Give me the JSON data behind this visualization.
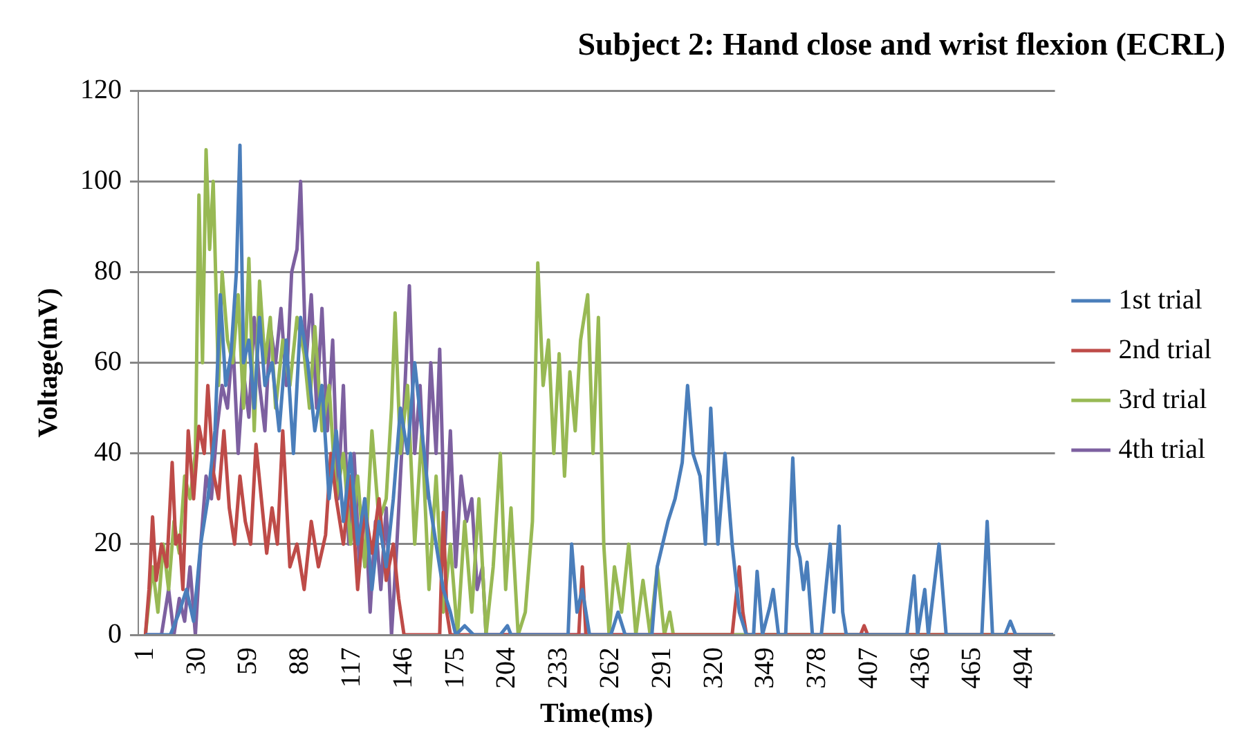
{
  "chart_data": {
    "type": "line",
    "title": "Subject 2: Hand close and wrist flexion (ECRL)",
    "xlabel": "Time(ms)",
    "ylabel": "Voltage(mV)",
    "xlim": [
      -3,
      511
    ],
    "xticks": [
      1,
      30,
      59,
      88,
      117,
      146,
      175,
      204,
      233,
      262,
      291,
      320,
      349,
      378,
      407,
      436,
      465,
      494
    ],
    "ylim": [
      0,
      120
    ],
    "yticks": [
      0,
      20,
      40,
      60,
      80,
      100,
      120
    ],
    "grid": "y",
    "legend": "right",
    "marker": "none",
    "line_style": "solid",
    "series": [
      {
        "name": "1st trial",
        "color": "#4a7ebb",
        "x": [
          1,
          15,
          20,
          24,
          28,
          32,
          36,
          40,
          43,
          46,
          49,
          52,
          54,
          56,
          59,
          62,
          65,
          68,
          72,
          76,
          80,
          84,
          88,
          92,
          96,
          100,
          104,
          108,
          112,
          116,
          120,
          124,
          128,
          132,
          136,
          140,
          144,
          148,
          152,
          156,
          160,
          164,
          168,
          172,
          175,
          180,
          185,
          200,
          204,
          206,
          238,
          240,
          243,
          246,
          250,
          262,
          266,
          270,
          285,
          288,
          291,
          294,
          298,
          302,
          305,
          308,
          312,
          315,
          318,
          322,
          326,
          330,
          334,
          338,
          342,
          344,
          347,
          351,
          353,
          356,
          360,
          364,
          366,
          368,
          370,
          372,
          375,
          380,
          385,
          387,
          390,
          392,
          394,
          428,
          432,
          434,
          438,
          440,
          446,
          448,
          450,
          470,
          473,
          476,
          483,
          486,
          489,
          510
        ],
        "values": [
          0,
          0,
          5,
          10,
          3,
          20,
          30,
          45,
          75,
          55,
          62,
          80,
          108,
          60,
          65,
          50,
          70,
          55,
          60,
          45,
          65,
          40,
          70,
          60,
          45,
          55,
          30,
          45,
          25,
          40,
          20,
          30,
          10,
          25,
          15,
          30,
          50,
          40,
          60,
          45,
          30,
          20,
          10,
          5,
          0,
          2,
          0,
          0,
          2,
          0,
          0,
          20,
          5,
          10,
          0,
          0,
          5,
          0,
          0,
          15,
          20,
          25,
          30,
          38,
          55,
          40,
          35,
          20,
          50,
          20,
          40,
          20,
          5,
          0,
          0,
          14,
          0,
          6,
          10,
          0,
          0,
          39,
          20,
          17,
          10,
          16,
          0,
          0,
          20,
          5,
          24,
          5,
          0,
          0,
          13,
          0,
          10,
          0,
          20,
          10,
          0,
          0,
          25,
          0,
          0,
          3,
          0,
          0
        ]
      },
      {
        "name": "2nd trial",
        "color": "#be4b48",
        "x": [
          1,
          3,
          5,
          7,
          10,
          13,
          16,
          18,
          20,
          22,
          25,
          28,
          31,
          34,
          36,
          39,
          42,
          45,
          48,
          51,
          54,
          57,
          60,
          63,
          66,
          69,
          72,
          75,
          78,
          82,
          86,
          90,
          94,
          98,
          102,
          105,
          108,
          112,
          116,
          120,
          124,
          128,
          132,
          136,
          140,
          143,
          146,
          160,
          166,
          168,
          170,
          172,
          244,
          246,
          248,
          250,
          330,
          334,
          336,
          338,
          402,
          404,
          406,
          510
        ],
        "values": [
          0,
          10,
          26,
          12,
          20,
          15,
          38,
          20,
          22,
          10,
          45,
          30,
          46,
          40,
          55,
          36,
          30,
          45,
          28,
          20,
          35,
          25,
          20,
          42,
          30,
          18,
          28,
          20,
          45,
          15,
          20,
          10,
          25,
          15,
          22,
          40,
          30,
          20,
          35,
          10,
          28,
          18,
          30,
          12,
          20,
          8,
          0,
          0,
          0,
          27,
          5,
          0,
          0,
          15,
          0,
          0,
          0,
          15,
          5,
          0,
          0,
          2,
          0,
          0
        ]
      },
      {
        "name": "3rd trial",
        "color": "#98b954",
        "x": [
          1,
          5,
          8,
          11,
          14,
          17,
          20,
          23,
          26,
          29,
          31,
          33,
          35,
          37,
          39,
          42,
          44,
          47,
          50,
          53,
          56,
          59,
          62,
          65,
          68,
          71,
          74,
          78,
          82,
          86,
          90,
          93,
          96,
          100,
          104,
          108,
          112,
          116,
          120,
          124,
          128,
          132,
          136,
          139,
          141,
          144,
          148,
          152,
          156,
          160,
          164,
          168,
          172,
          176,
          180,
          184,
          188,
          192,
          196,
          200,
          203,
          206,
          210,
          214,
          218,
          221,
          224,
          227,
          230,
          233,
          236,
          239,
          242,
          245,
          249,
          252,
          255,
          258,
          261,
          264,
          268,
          272,
          276,
          280,
          284,
          288,
          292,
          295,
          297,
          300,
          510
        ],
        "values": [
          0,
          15,
          5,
          20,
          10,
          25,
          18,
          35,
          30,
          40,
          97,
          60,
          107,
          85,
          100,
          55,
          80,
          65,
          60,
          75,
          50,
          83,
          45,
          78,
          60,
          70,
          50,
          65,
          55,
          70,
          62,
          50,
          68,
          45,
          55,
          30,
          40,
          20,
          35,
          15,
          45,
          25,
          30,
          50,
          71,
          40,
          55,
          20,
          45,
          10,
          35,
          5,
          20,
          0,
          25,
          5,
          30,
          0,
          15,
          40,
          10,
          28,
          0,
          5,
          25,
          82,
          55,
          65,
          40,
          62,
          35,
          58,
          45,
          65,
          75,
          40,
          70,
          20,
          0,
          15,
          5,
          20,
          0,
          12,
          0,
          15,
          0,
          5,
          0,
          0,
          0
        ]
      },
      {
        "name": "4th trial",
        "color": "#7d60a0",
        "x": [
          1,
          10,
          14,
          17,
          20,
          23,
          26,
          29,
          32,
          35,
          38,
          41,
          44,
          47,
          50,
          53,
          56,
          59,
          62,
          65,
          68,
          71,
          74,
          77,
          80,
          83,
          86,
          88,
          91,
          94,
          97,
          100,
          103,
          106,
          109,
          112,
          115,
          118,
          121,
          124,
          127,
          130,
          133,
          136,
          139,
          142,
          146,
          149,
          152,
          155,
          158,
          161,
          164,
          166,
          169,
          172,
          175,
          178,
          181,
          184,
          187,
          190,
          192,
          510
        ],
        "values": [
          0,
          0,
          10,
          0,
          8,
          3,
          15,
          0,
          20,
          35,
          30,
          45,
          55,
          50,
          65,
          40,
          58,
          48,
          70,
          55,
          45,
          68,
          60,
          72,
          55,
          80,
          85,
          100,
          60,
          75,
          50,
          72,
          45,
          65,
          30,
          55,
          20,
          40,
          15,
          30,
          5,
          25,
          10,
          28,
          0,
          20,
          50,
          77,
          40,
          55,
          30,
          60,
          40,
          63,
          20,
          45,
          15,
          35,
          25,
          30,
          10,
          15,
          0,
          0
        ]
      }
    ]
  }
}
